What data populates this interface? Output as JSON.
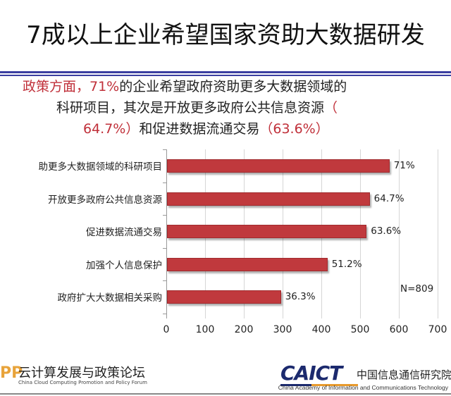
{
  "title": "7成以上企业希望国家资助大数据研发",
  "subtitle": {
    "l1_red": "政策方面，71%",
    "l1_black": "的企业希望政府资助更多大数据领域的",
    "l2_black": "科研项目，其次是开放更多政府公共信息资源",
    "l2_red": "（",
    "l3_red1": "64.7%）",
    "l3_black": "和促进数据流通交易",
    "l3_red2": "（63.6%）"
  },
  "colors": {
    "bar": "#c0393d",
    "accent_red": "#c0303a",
    "rule": "#3b3fa0"
  },
  "chart_data": {
    "type": "bar",
    "orientation": "horizontal",
    "categories": [
      "助更多大数据领域的科研项目",
      "开放更多政府公共信息资源",
      "促进数据流通交易",
      "加强个人信息保护",
      "政府扩大大数据相关采购"
    ],
    "values": [
      574,
      523,
      515,
      414,
      294
    ],
    "data_labels": [
      "71%",
      "64.7%",
      "63.6%",
      "51.2%",
      "36.3%"
    ],
    "xlim": [
      0,
      700
    ],
    "xticks": [
      "0",
      "100",
      "200",
      "300",
      "400",
      "500",
      "600",
      "700"
    ],
    "grid": true,
    "annotation": "N=809"
  },
  "footer": {
    "left_logo": "PP",
    "left_cn": "云计算发展与政策论坛",
    "left_en": "China Cloud Computing Promotion and Policy Forum",
    "right_logo": "CAICT",
    "right_cn": "中国信息通信研究院",
    "right_en": "China Academy of Information and Communications Technology"
  }
}
